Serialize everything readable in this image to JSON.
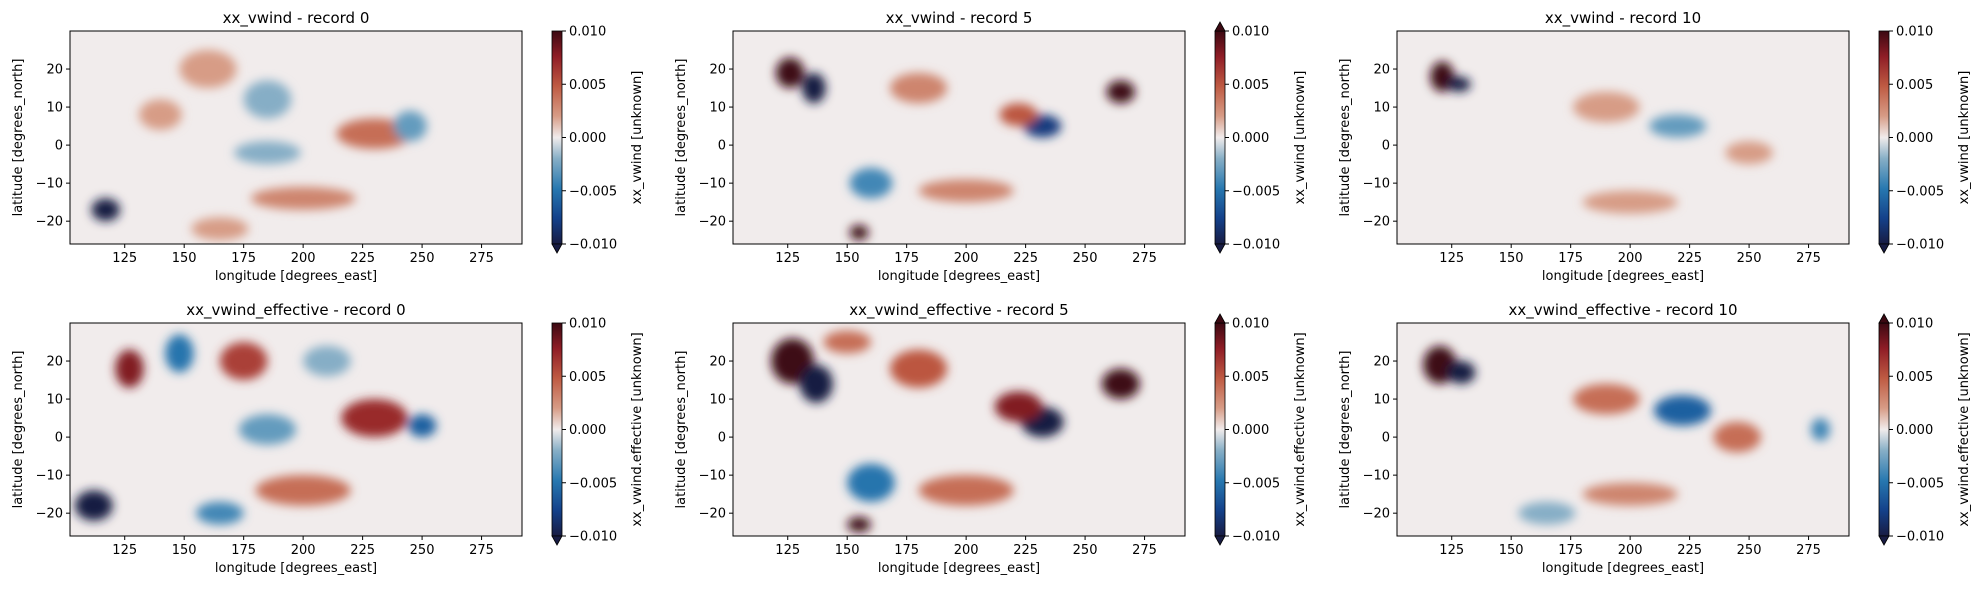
{
  "chart_data": [
    {
      "type": "heatmap",
      "title": "xx_vwind - record 0",
      "xlabel": "longitude [degrees_east]",
      "ylabel": "latitude [degrees_north]",
      "colorbar_label": "xx_vwind [unknown]",
      "xlim": [
        102,
        292
      ],
      "ylim": [
        -26,
        30
      ],
      "xticks": [
        125,
        150,
        175,
        200,
        225,
        250,
        275
      ],
      "yticks": [
        -20,
        -10,
        0,
        10,
        20
      ],
      "clim": [
        -0.01,
        0.01
      ],
      "cbar_ticks": [
        "0.010",
        "0.005",
        "0.000",
        "−0.005",
        "−0.010"
      ],
      "extend": "min",
      "colormap": "balance",
      "features": [
        {
          "lon": 117,
          "lat": -17,
          "value": -0.012,
          "rx": 6,
          "ry": 3
        },
        {
          "lon": 160,
          "lat": 20,
          "value": 0.002,
          "rx": 12,
          "ry": 5
        },
        {
          "lon": 185,
          "lat": 12,
          "value": -0.002,
          "rx": 10,
          "ry": 5
        },
        {
          "lon": 230,
          "lat": 3,
          "value": 0.004,
          "rx": 16,
          "ry": 4
        },
        {
          "lon": 245,
          "lat": 5,
          "value": -0.003,
          "rx": 7,
          "ry": 4
        },
        {
          "lon": 200,
          "lat": -14,
          "value": 0.003,
          "rx": 22,
          "ry": 3
        },
        {
          "lon": 185,
          "lat": -2,
          "value": -0.002,
          "rx": 14,
          "ry": 3
        },
        {
          "lon": 165,
          "lat": -22,
          "value": 0.002,
          "rx": 12,
          "ry": 3
        },
        {
          "lon": 140,
          "lat": 8,
          "value": 0.002,
          "rx": 9,
          "ry": 4
        }
      ]
    },
    {
      "type": "heatmap",
      "title": "xx_vwind - record 5",
      "xlabel": "longitude [degrees_east]",
      "ylabel": "latitude [degrees_north]",
      "colorbar_label": "xx_vwind [unknown]",
      "xlim": [
        102,
        292
      ],
      "ylim": [
        -26,
        30
      ],
      "xticks": [
        125,
        150,
        175,
        200,
        225,
        250,
        275
      ],
      "yticks": [
        -20,
        -10,
        0,
        10,
        20
      ],
      "clim": [
        -0.01,
        0.01
      ],
      "cbar_ticks": [
        "0.010",
        "0.005",
        "0.000",
        "−0.005",
        "−0.010"
      ],
      "extend": "both",
      "colormap": "balance",
      "features": [
        {
          "lon": 126,
          "lat": 19,
          "value": 0.011,
          "rx": 6,
          "ry": 4
        },
        {
          "lon": 136,
          "lat": 15,
          "value": -0.011,
          "rx": 5,
          "ry": 4
        },
        {
          "lon": 265,
          "lat": 14,
          "value": 0.011,
          "rx": 6,
          "ry": 3
        },
        {
          "lon": 232,
          "lat": 5,
          "value": -0.008,
          "rx": 8,
          "ry": 3
        },
        {
          "lon": 222,
          "lat": 8,
          "value": 0.005,
          "rx": 8,
          "ry": 3
        },
        {
          "lon": 155,
          "lat": -23,
          "value": 0.011,
          "rx": 4,
          "ry": 2
        },
        {
          "lon": 160,
          "lat": -10,
          "value": -0.004,
          "rx": 9,
          "ry": 4
        },
        {
          "lon": 200,
          "lat": -12,
          "value": 0.003,
          "rx": 20,
          "ry": 3
        },
        {
          "lon": 180,
          "lat": 15,
          "value": 0.003,
          "rx": 12,
          "ry": 4
        }
      ]
    },
    {
      "type": "heatmap",
      "title": "xx_vwind - record 10",
      "xlabel": "longitude [degrees_east]",
      "ylabel": "latitude [degrees_north]",
      "colorbar_label": "xx_vwind [unknown]",
      "xlim": [
        102,
        292
      ],
      "ylim": [
        -26,
        30
      ],
      "xticks": [
        125,
        150,
        175,
        200,
        225,
        250,
        275
      ],
      "yticks": [
        -20,
        -10,
        0,
        10,
        20
      ],
      "clim": [
        -0.01,
        0.01
      ],
      "cbar_ticks": [
        "0.010",
        "0.005",
        "0.000",
        "−0.005",
        "−0.010"
      ],
      "extend": "min",
      "colormap": "balance",
      "features": [
        {
          "lon": 121,
          "lat": 18,
          "value": 0.011,
          "rx": 5,
          "ry": 4
        },
        {
          "lon": 128,
          "lat": 16,
          "value": -0.011,
          "rx": 5,
          "ry": 2
        },
        {
          "lon": 220,
          "lat": 5,
          "value": -0.003,
          "rx": 12,
          "ry": 3
        },
        {
          "lon": 190,
          "lat": 10,
          "value": 0.002,
          "rx": 14,
          "ry": 4
        },
        {
          "lon": 250,
          "lat": -2,
          "value": 0.002,
          "rx": 10,
          "ry": 3
        },
        {
          "lon": 200,
          "lat": -15,
          "value": 0.002,
          "rx": 20,
          "ry": 3
        }
      ]
    },
    {
      "type": "heatmap",
      "title": "xx_vwind_effective - record 0",
      "xlabel": "longitude [degrees_east]",
      "ylabel": "latitude [degrees_north]",
      "colorbar_label": "xx_vwind.effective [unknown]",
      "xlim": [
        102,
        292
      ],
      "ylim": [
        -26,
        30
      ],
      "xticks": [
        125,
        150,
        175,
        200,
        225,
        250,
        275
      ],
      "yticks": [
        -20,
        -10,
        0,
        10,
        20
      ],
      "clim": [
        -0.01,
        0.01
      ],
      "cbar_ticks": [
        "0.010",
        "0.005",
        "0.000",
        "−0.005",
        "−0.010"
      ],
      "extend": "min",
      "colormap": "balance",
      "features": [
        {
          "lon": 112,
          "lat": -18,
          "value": -0.012,
          "rx": 8,
          "ry": 4
        },
        {
          "lon": 127,
          "lat": 18,
          "value": 0.008,
          "rx": 6,
          "ry": 5
        },
        {
          "lon": 148,
          "lat": 22,
          "value": -0.005,
          "rx": 6,
          "ry": 5
        },
        {
          "lon": 175,
          "lat": 20,
          "value": 0.006,
          "rx": 10,
          "ry": 5
        },
        {
          "lon": 230,
          "lat": 5,
          "value": 0.007,
          "rx": 14,
          "ry": 5
        },
        {
          "lon": 250,
          "lat": 3,
          "value": -0.006,
          "rx": 6,
          "ry": 3
        },
        {
          "lon": 165,
          "lat": -20,
          "value": -0.004,
          "rx": 10,
          "ry": 3
        },
        {
          "lon": 200,
          "lat": -14,
          "value": 0.004,
          "rx": 20,
          "ry": 4
        },
        {
          "lon": 185,
          "lat": 2,
          "value": -0.003,
          "rx": 12,
          "ry": 4
        },
        {
          "lon": 210,
          "lat": 20,
          "value": -0.002,
          "rx": 10,
          "ry": 4
        }
      ]
    },
    {
      "type": "heatmap",
      "title": "xx_vwind_effective - record 5",
      "xlabel": "longitude [degrees_east]",
      "ylabel": "latitude [degrees_north]",
      "colorbar_label": "xx_vwind.effective [unknown]",
      "xlim": [
        102,
        292
      ],
      "ylim": [
        -26,
        30
      ],
      "xticks": [
        125,
        150,
        175,
        200,
        225,
        250,
        275
      ],
      "yticks": [
        -20,
        -10,
        0,
        10,
        20
      ],
      "clim": [
        -0.01,
        0.01
      ],
      "cbar_ticks": [
        "0.010",
        "0.005",
        "0.000",
        "−0.005",
        "−0.010"
      ],
      "extend": "both",
      "colormap": "balance",
      "features": [
        {
          "lon": 127,
          "lat": 20,
          "value": 0.012,
          "rx": 9,
          "ry": 6
        },
        {
          "lon": 137,
          "lat": 14,
          "value": -0.012,
          "rx": 7,
          "ry": 5
        },
        {
          "lon": 265,
          "lat": 14,
          "value": 0.012,
          "rx": 8,
          "ry": 4
        },
        {
          "lon": 232,
          "lat": 4,
          "value": -0.011,
          "rx": 9,
          "ry": 4
        },
        {
          "lon": 222,
          "lat": 8,
          "value": 0.008,
          "rx": 10,
          "ry": 4
        },
        {
          "lon": 155,
          "lat": -23,
          "value": 0.012,
          "rx": 5,
          "ry": 2
        },
        {
          "lon": 160,
          "lat": -12,
          "value": -0.005,
          "rx": 10,
          "ry": 5
        },
        {
          "lon": 180,
          "lat": 18,
          "value": 0.005,
          "rx": 12,
          "ry": 5
        },
        {
          "lon": 200,
          "lat": -14,
          "value": 0.004,
          "rx": 20,
          "ry": 4
        },
        {
          "lon": 150,
          "lat": 25,
          "value": 0.004,
          "rx": 10,
          "ry": 3
        }
      ]
    },
    {
      "type": "heatmap",
      "title": "xx_vwind_effective - record 10",
      "xlabel": "longitude [degrees_east]",
      "ylabel": "latitude [degrees_north]",
      "colorbar_label": "xx_vwind.effective [unknown]",
      "xlim": [
        102,
        292
      ],
      "ylim": [
        -26,
        30
      ],
      "xticks": [
        125,
        150,
        175,
        200,
        225,
        250,
        275
      ],
      "yticks": [
        -20,
        -10,
        0,
        10,
        20
      ],
      "clim": [
        -0.01,
        0.01
      ],
      "cbar_ticks": [
        "0.010",
        "0.005",
        "0.000",
        "−0.005",
        "−0.010"
      ],
      "extend": "both",
      "colormap": "balance",
      "features": [
        {
          "lon": 120,
          "lat": 19,
          "value": 0.012,
          "rx": 7,
          "ry": 5
        },
        {
          "lon": 129,
          "lat": 17,
          "value": -0.012,
          "rx": 6,
          "ry": 3
        },
        {
          "lon": 222,
          "lat": 7,
          "value": -0.006,
          "rx": 12,
          "ry": 4
        },
        {
          "lon": 190,
          "lat": 10,
          "value": 0.004,
          "rx": 14,
          "ry": 4
        },
        {
          "lon": 245,
          "lat": 0,
          "value": 0.004,
          "rx": 10,
          "ry": 4
        },
        {
          "lon": 200,
          "lat": -15,
          "value": 0.003,
          "rx": 20,
          "ry": 3
        },
        {
          "lon": 280,
          "lat": 2,
          "value": -0.004,
          "rx": 4,
          "ry": 3
        },
        {
          "lon": 165,
          "lat": -20,
          "value": -0.002,
          "rx": 12,
          "ry": 3
        }
      ]
    }
  ]
}
